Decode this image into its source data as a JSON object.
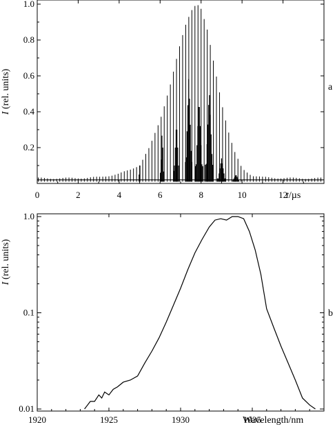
{
  "chart_data": [
    {
      "type": "line",
      "panel_label": "a",
      "ylabel_var": "I",
      "ylabel_rest": " (rel. units)",
      "xlabel_var": "t",
      "xlabel_rest": "/µs",
      "xlim": [
        0,
        14
      ],
      "ylim": [
        0,
        1.0
      ],
      "x_ticks": [
        0,
        2,
        4,
        6,
        8,
        10,
        12
      ],
      "y_ticks": [
        0.2,
        0.4,
        0.6,
        0.8,
        1.0
      ],
      "x_tick_labels": [
        "0",
        "2",
        "4",
        "6",
        "8",
        "10",
        "12"
      ],
      "y_tick_labels": [
        "0.2",
        "0.4",
        "0.6",
        "0.8",
        "1.0"
      ],
      "grid": false,
      "envelope": {
        "x": [
          0,
          3,
          4,
          4.5,
          5,
          5.5,
          6,
          6.5,
          7,
          7.3,
          7.6,
          7.8,
          8.0,
          8.3,
          8.6,
          9.0,
          9.3,
          9.6,
          10,
          10.5,
          11,
          14
        ],
        "y": [
          0.02,
          0.03,
          0.05,
          0.07,
          0.1,
          0.2,
          0.35,
          0.55,
          0.78,
          0.9,
          0.98,
          1.0,
          0.97,
          0.85,
          0.68,
          0.45,
          0.3,
          0.18,
          0.08,
          0.04,
          0.03,
          0.02
        ]
      },
      "baseline": 0.02,
      "pulse_spacing": 0.15
    },
    {
      "type": "line",
      "panel_label": "b",
      "ylabel_var": "I",
      "ylabel_rest": " (rel. units)",
      "xlabel": "Wavelength/nm",
      "xlim": [
        1920,
        1940
      ],
      "ylim": [
        0.01,
        1.0
      ],
      "yscale": "log",
      "x_ticks": [
        1920,
        1925,
        1930,
        1935
      ],
      "y_ticks": [
        0.01,
        0.1,
        1.0
      ],
      "x_tick_labels": [
        "1920",
        "1925",
        "1930",
        "1935"
      ],
      "y_tick_labels": [
        "0.01",
        "0.1",
        "1.0"
      ],
      "grid": false,
      "x": [
        1923.3,
        1923.7,
        1924.0,
        1924.3,
        1924.5,
        1924.7,
        1925.0,
        1925.3,
        1925.6,
        1926.0,
        1926.5,
        1927.0,
        1927.5,
        1928.0,
        1928.5,
        1929.0,
        1929.5,
        1930.0,
        1930.5,
        1931.0,
        1931.5,
        1932.0,
        1932.4,
        1932.8,
        1933.2,
        1933.6,
        1934.0,
        1934.4,
        1934.8,
        1935.2,
        1935.6,
        1936.0,
        1936.5,
        1937.0,
        1937.5,
        1938.0,
        1938.5,
        1939.0,
        1939.4
      ],
      "y": [
        0.01,
        0.012,
        0.012,
        0.014,
        0.013,
        0.015,
        0.014,
        0.016,
        0.017,
        0.019,
        0.02,
        0.022,
        0.03,
        0.04,
        0.055,
        0.08,
        0.12,
        0.18,
        0.28,
        0.42,
        0.58,
        0.78,
        0.92,
        0.95,
        0.92,
        1.0,
        1.0,
        0.95,
        0.7,
        0.45,
        0.25,
        0.11,
        0.07,
        0.045,
        0.03,
        0.02,
        0.013,
        0.011,
        0.01
      ]
    }
  ]
}
